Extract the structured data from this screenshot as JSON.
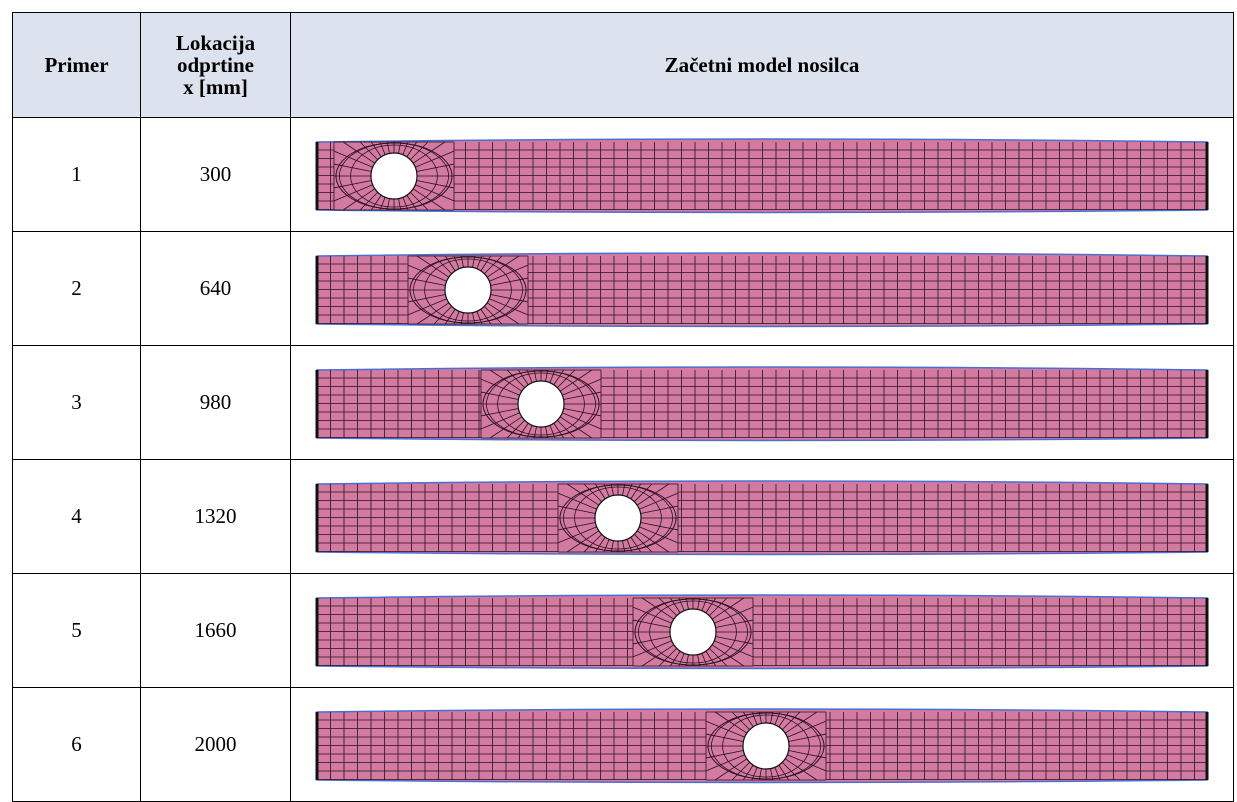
{
  "table": {
    "headers": [
      "Primer",
      "Lokacija\nodprtine\nx [mm]",
      "Začetni model nosilca"
    ],
    "rows": [
      [
        1,
        300
      ],
      [
        2,
        640
      ],
      [
        3,
        980
      ],
      [
        4,
        1320
      ],
      [
        5,
        1660
      ],
      [
        6,
        2000
      ]
    ]
  }
}
